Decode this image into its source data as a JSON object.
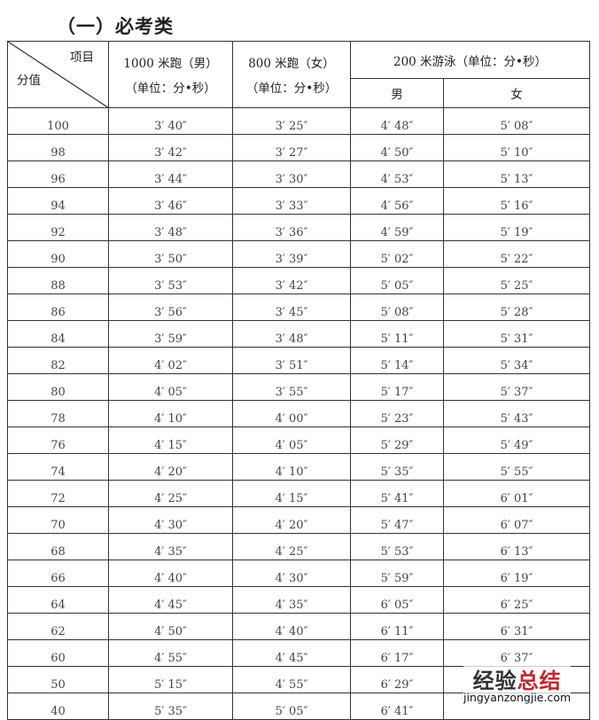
{
  "title": "（一）必考类",
  "header": {
    "corner_top": "项目",
    "corner_bottom": "分值",
    "col1_line1": "1000 米跑（男）",
    "col1_line2": "（单位：分•秒）",
    "col2_line1": "800 米跑（女）",
    "col2_line2": "（单位：分•秒）",
    "col3": "200 米游泳（单位：分•秒）",
    "col3_male": "男",
    "col3_female": "女"
  },
  "rows": [
    [
      "100",
      "3′ 40″",
      "3′ 25″",
      "4′ 48″",
      "5′ 08″"
    ],
    [
      "98",
      "3′ 42″",
      "3′ 27″",
      "4′ 50″",
      "5′ 10″"
    ],
    [
      "96",
      "3′ 44″",
      "3′ 30″",
      "4′ 53″",
      "5′ 13″"
    ],
    [
      "94",
      "3′ 46″",
      "3′ 33″",
      "4′ 56″",
      "5′ 16″"
    ],
    [
      "92",
      "3′ 48″",
      "3′ 36″",
      "4′ 59″",
      "5′ 19″"
    ],
    [
      "90",
      "3′ 50″",
      "3′ 39″",
      "5′ 02″",
      "5′ 22″"
    ],
    [
      "88",
      "3′ 53″",
      "3′ 42″",
      "5′ 05″",
      "5′ 25″"
    ],
    [
      "86",
      "3′ 56″",
      "3′ 45″",
      "5′ 08″",
      "5′ 28″"
    ],
    [
      "84",
      "3′ 59″",
      "3′ 48″",
      "5′ 11″",
      "5′ 31″"
    ],
    [
      "82",
      "4′ 02″",
      "3′ 51″",
      "5′ 14″",
      "5′ 34″"
    ],
    [
      "80",
      "4′ 05″",
      "3′ 55″",
      "5′ 17″",
      "5′ 37″"
    ],
    [
      "78",
      "4′ 10″",
      "4′ 00″",
      "5′ 23″",
      "5′ 43″"
    ],
    [
      "76",
      "4′ 15″",
      "4′ 05″",
      "5′ 29″",
      "5′ 49″"
    ],
    [
      "74",
      "4′ 20″",
      "4′ 10″",
      "5′ 35″",
      "5′ 55″"
    ],
    [
      "72",
      "4′ 25″",
      "4′ 15″",
      "5′ 41″",
      "6′ 01″"
    ],
    [
      "70",
      "4′ 30″",
      "4′ 20″",
      "5′ 47″",
      "6′ 07″"
    ],
    [
      "68",
      "4′ 35″",
      "4′ 25″",
      "5′ 53″",
      "6′ 13″"
    ],
    [
      "66",
      "4′ 40″",
      "4′ 30″",
      "5′ 59″",
      "6′ 19″"
    ],
    [
      "64",
      "4′ 45″",
      "4′ 35″",
      "6′ 05″",
      "6′ 25″"
    ],
    [
      "62",
      "4′ 50″",
      "4′ 40″",
      "6′ 11″",
      "6′ 31″"
    ],
    [
      "60",
      "4′ 55″",
      "4′ 45″",
      "6′ 17″",
      "6′ 37″"
    ],
    [
      "50",
      "5′ 15″",
      "4′ 55″",
      "6′ 29″",
      ""
    ],
    [
      "40",
      "5′ 35″",
      "5′ 05″",
      "6′ 41″",
      ""
    ]
  ],
  "watermark": {
    "cn_black": "经验",
    "cn_red": "总结",
    "url": "jingyanzongjie.com"
  }
}
